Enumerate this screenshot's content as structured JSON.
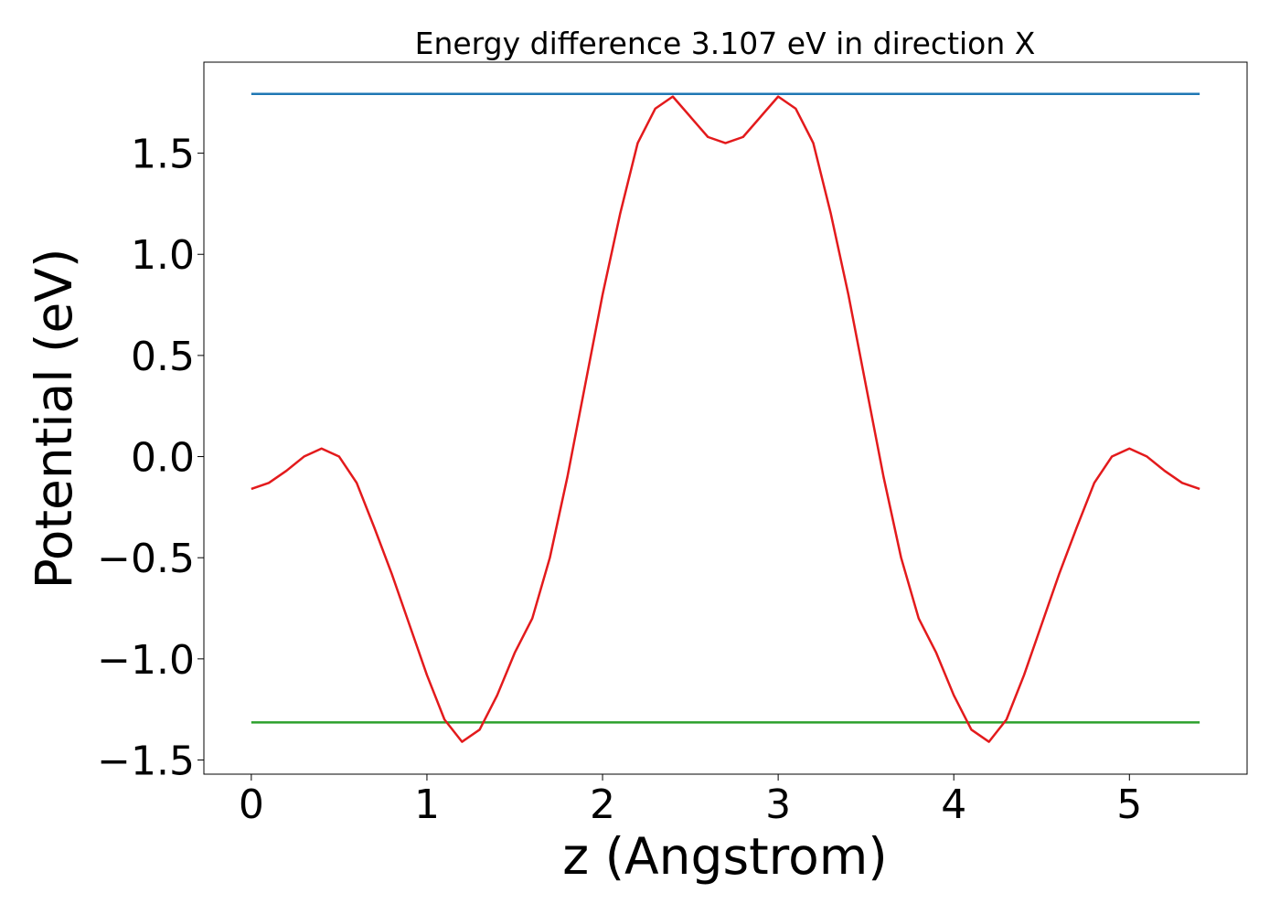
{
  "chart_data": {
    "type": "line",
    "title": "Energy difference 3.107 eV in direction X",
    "xlabel": "z (Angstrom)",
    "ylabel": "Potential (eV)",
    "xlim": [
      -0.27,
      5.67
    ],
    "ylim": [
      -1.57,
      1.95
    ],
    "xticks": [
      0,
      1,
      2,
      3,
      4,
      5
    ],
    "yticks": [
      {
        "value": -1.5,
        "label": "−1.5"
      },
      {
        "value": -1.0,
        "label": "−1.0"
      },
      {
        "value": -0.5,
        "label": "−0.5"
      },
      {
        "value": 0.0,
        "label": "0.0"
      },
      0.5,
      {
        "value": 1.0,
        "label": "1.0"
      },
      1.5
    ],
    "grid": false,
    "series": [
      {
        "color": "#1f77b4",
        "x": [
          0,
          5.4
        ],
        "values": [
          1.793,
          1.793
        ]
      },
      {
        "color": "#2ca02c",
        "x": [
          0,
          5.4
        ],
        "values": [
          -1.314,
          -1.314
        ]
      },
      {
        "color": "#e31a1c",
        "x": [
          0,
          0.1,
          0.2,
          0.3,
          0.4,
          0.5,
          0.6,
          0.7,
          0.8,
          0.9,
          1.0,
          1.1,
          1.2,
          1.3,
          1.4,
          1.5,
          1.6,
          1.7,
          1.8,
          1.9,
          2.0,
          2.1,
          2.2,
          2.3,
          2.4,
          2.5,
          2.6,
          2.7,
          2.8,
          2.9,
          3.0,
          3.1,
          3.2,
          3.3,
          3.4,
          3.5,
          3.6,
          3.7,
          3.8,
          3.9,
          4.0,
          4.1,
          4.2,
          4.3,
          4.4,
          4.5,
          4.6,
          4.7,
          4.8,
          4.9,
          5.0,
          5.1,
          5.2,
          5.3,
          5.4
        ],
        "values": [
          -0.16,
          -0.13,
          -0.07,
          0.0,
          0.04,
          0.0,
          -0.13,
          -0.35,
          -0.58,
          -0.83,
          -1.08,
          -1.3,
          -1.41,
          -1.35,
          -1.18,
          -0.97,
          -0.8,
          -0.5,
          -0.1,
          0.35,
          0.8,
          1.2,
          1.55,
          1.72,
          1.78,
          1.68,
          1.58,
          1.55,
          1.58,
          1.68,
          1.78,
          1.72,
          1.55,
          1.2,
          0.8,
          0.35,
          -0.1,
          -0.5,
          -0.8,
          -0.97,
          -1.18,
          -1.35,
          -1.41,
          -1.3,
          -1.08,
          -0.83,
          -0.58,
          -0.35,
          -0.13,
          0.0,
          0.04,
          0.0,
          -0.07,
          -0.13,
          -0.16
        ]
      }
    ]
  }
}
